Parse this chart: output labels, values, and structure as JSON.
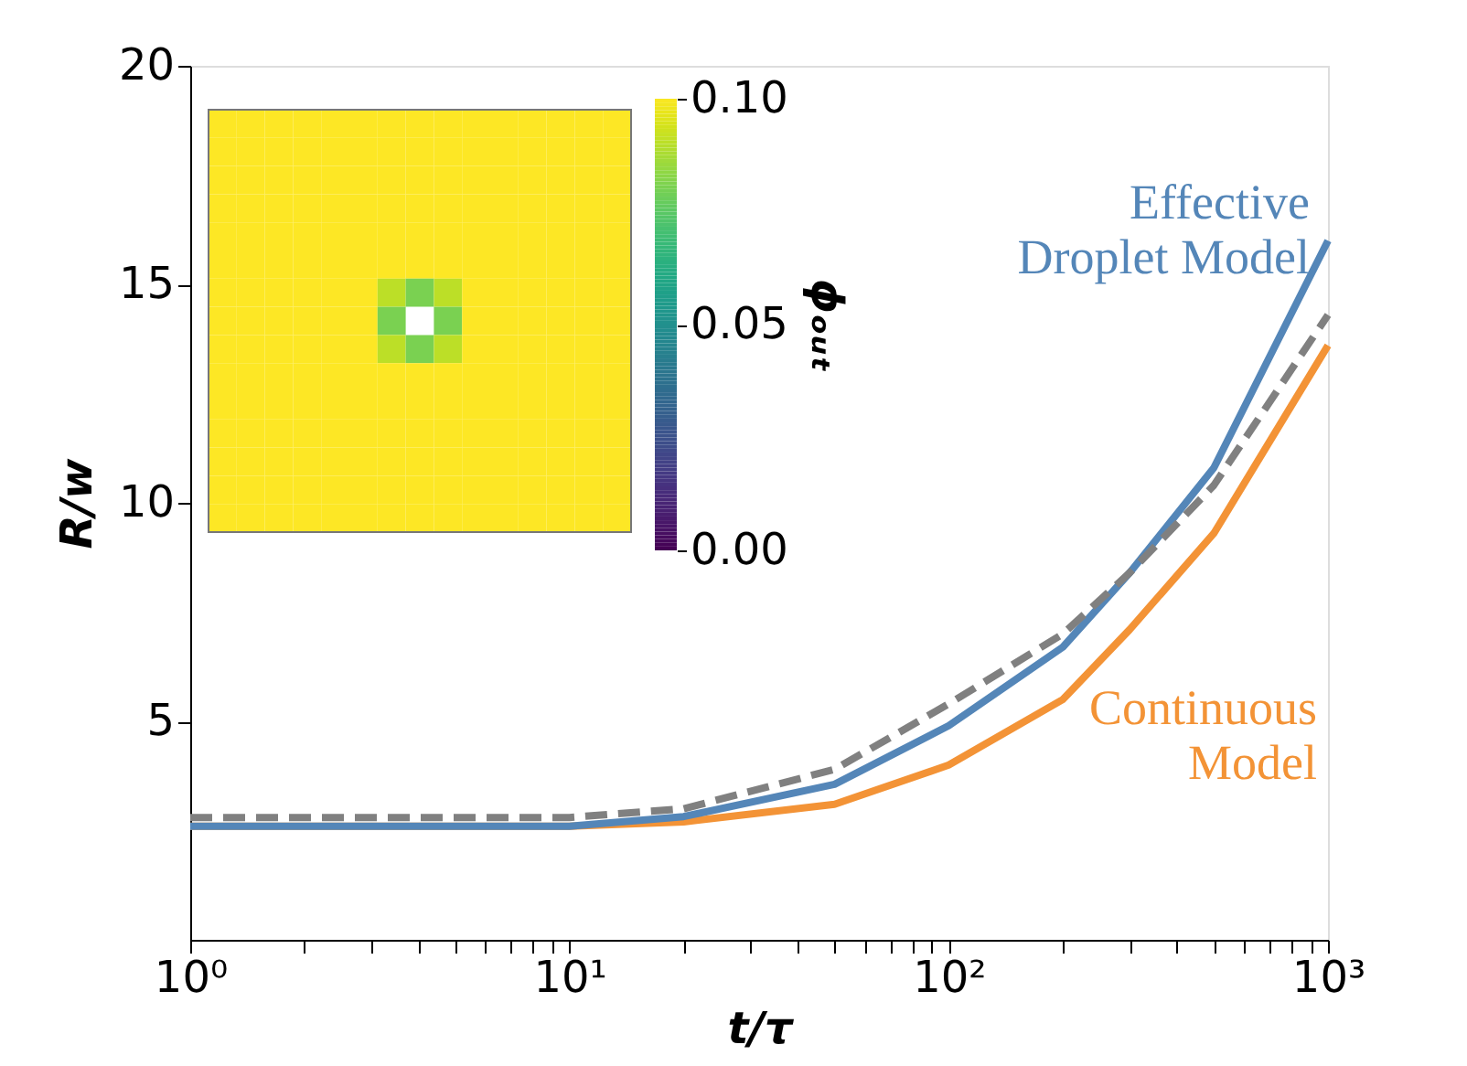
{
  "chart_data": [
    {
      "type": "line",
      "xlabel": "t/τ",
      "ylabel": "R/w",
      "log": "x",
      "xlim": [
        1,
        1000
      ],
      "ylim": [
        0,
        20
      ],
      "xticks": [
        {
          "value": 1,
          "label": "10⁰"
        },
        {
          "value": 2,
          "label": null
        },
        {
          "value": 3,
          "label": null
        },
        {
          "value": 4,
          "label": null
        },
        {
          "value": 5,
          "label": null
        },
        {
          "value": 6,
          "label": null
        },
        {
          "value": 7,
          "label": null
        },
        {
          "value": 8,
          "label": null
        },
        {
          "value": 9,
          "label": null
        },
        {
          "value": 10,
          "label": "10¹"
        },
        {
          "value": 20,
          "label": null
        },
        {
          "value": 30,
          "label": null
        },
        {
          "value": 40,
          "label": null
        },
        {
          "value": 50,
          "label": null
        },
        {
          "value": 60,
          "label": null
        },
        {
          "value": 70,
          "label": null
        },
        {
          "value": 80,
          "label": null
        },
        {
          "value": 90,
          "label": null
        },
        {
          "value": 100,
          "label": "10²"
        },
        {
          "value": 200,
          "label": null
        },
        {
          "value": 300,
          "label": null
        },
        {
          "value": 400,
          "label": null
        },
        {
          "value": 500,
          "label": null
        },
        {
          "value": 600,
          "label": null
        },
        {
          "value": 700,
          "label": null
        },
        {
          "value": 800,
          "label": null
        },
        {
          "value": 900,
          "label": null
        },
        {
          "value": 1000,
          "label": "10³"
        }
      ],
      "yticks": [
        5,
        10,
        15,
        20
      ],
      "grid": false,
      "legend": false,
      "marker": "none",
      "x": [
        1,
        10,
        20,
        50,
        100,
        200,
        300,
        500,
        1000
      ],
      "series": [
        {
          "name": "Continuous Model",
          "color": "#f39336",
          "line_style": "solid",
          "values": [
            2.6,
            2.6,
            2.7,
            3.1,
            4.0,
            5.5,
            7.1,
            9.3,
            13.6
          ]
        },
        {
          "name": "Effective Droplet Model",
          "color": "#5486b8",
          "line_style": "solid",
          "values": [
            2.6,
            2.6,
            2.82,
            3.56,
            4.9,
            6.7,
            8.4,
            10.8,
            16.0
          ]
        },
        {
          "color": "#808080",
          "line_style": "dashed",
          "values": [
            2.8,
            2.8,
            3.0,
            3.9,
            5.4,
            7.0,
            8.4,
            10.4,
            14.3
          ]
        }
      ]
    },
    {
      "type": "heatmap",
      "clabel": "ϕₒᵤₜ",
      "clim": [
        0.0,
        0.1
      ],
      "cticks": [
        {
          "value": 0.0,
          "label": "0.00"
        },
        {
          "value": 0.05,
          "label": "0.05"
        },
        {
          "value": 0.1,
          "label": "0.10"
        }
      ],
      "categories": [
        null,
        null,
        null,
        null,
        null,
        null,
        null,
        null,
        null,
        null,
        null,
        null,
        null,
        null,
        null
      ],
      "y_categories": [
        null,
        null,
        null,
        null,
        null,
        null,
        null,
        null,
        null,
        null,
        null,
        null,
        null,
        null,
        null
      ],
      "cells": [
        [
          0.1,
          0.1,
          0.1,
          0.1,
          0.1,
          0.1,
          0.1,
          0.1,
          0.1,
          0.1,
          0.1,
          0.1,
          0.1,
          0.1,
          0.1
        ],
        [
          0.1,
          0.1,
          0.1,
          0.1,
          0.1,
          0.1,
          0.1,
          0.1,
          0.1,
          0.1,
          0.1,
          0.1,
          0.1,
          0.1,
          0.1
        ],
        [
          0.1,
          0.1,
          0.1,
          0.1,
          0.1,
          0.1,
          0.1,
          0.1,
          0.1,
          0.1,
          0.1,
          0.1,
          0.1,
          0.1,
          0.1
        ],
        [
          0.1,
          0.1,
          0.1,
          0.1,
          0.1,
          0.1,
          0.1,
          0.1,
          0.1,
          0.1,
          0.1,
          0.1,
          0.1,
          0.1,
          0.1
        ],
        [
          0.1,
          0.1,
          0.1,
          0.1,
          0.1,
          0.1,
          0.1,
          0.1,
          0.1,
          0.1,
          0.1,
          0.1,
          0.1,
          0.1,
          0.1
        ],
        [
          0.1,
          0.1,
          0.1,
          0.1,
          0.1,
          0.1,
          0.1,
          0.1,
          0.1,
          0.1,
          0.1,
          0.1,
          0.1,
          0.1,
          0.1
        ],
        [
          0.1,
          0.1,
          0.1,
          0.1,
          0.1,
          0.1,
          0.09,
          0.08,
          0.09,
          0.1,
          0.1,
          0.1,
          0.1,
          0.1,
          0.1
        ],
        [
          0.1,
          0.1,
          0.1,
          0.1,
          0.1,
          0.1,
          0.08,
          null,
          0.08,
          0.1,
          0.1,
          0.1,
          0.1,
          0.1,
          0.1
        ],
        [
          0.1,
          0.1,
          0.1,
          0.1,
          0.1,
          0.1,
          0.09,
          0.08,
          0.09,
          0.1,
          0.1,
          0.1,
          0.1,
          0.1,
          0.1
        ],
        [
          0.1,
          0.1,
          0.1,
          0.1,
          0.1,
          0.1,
          0.1,
          0.1,
          0.1,
          0.1,
          0.1,
          0.1,
          0.1,
          0.1,
          0.1
        ],
        [
          0.1,
          0.1,
          0.1,
          0.1,
          0.1,
          0.1,
          0.1,
          0.1,
          0.1,
          0.1,
          0.1,
          0.1,
          0.1,
          0.1,
          0.1
        ],
        [
          0.1,
          0.1,
          0.1,
          0.1,
          0.1,
          0.1,
          0.1,
          0.1,
          0.1,
          0.1,
          0.1,
          0.1,
          0.1,
          0.1,
          0.1
        ],
        [
          0.1,
          0.1,
          0.1,
          0.1,
          0.1,
          0.1,
          0.1,
          0.1,
          0.1,
          0.1,
          0.1,
          0.1,
          0.1,
          0.1,
          0.1
        ],
        [
          0.1,
          0.1,
          0.1,
          0.1,
          0.1,
          0.1,
          0.1,
          0.1,
          0.1,
          0.1,
          0.1,
          0.1,
          0.1,
          0.1,
          0.1
        ],
        [
          0.1,
          0.1,
          0.1,
          0.1,
          0.1,
          0.1,
          0.1,
          0.1,
          0.1,
          0.1,
          0.1,
          0.1,
          0.1,
          0.1,
          0.1
        ]
      ]
    }
  ]
}
